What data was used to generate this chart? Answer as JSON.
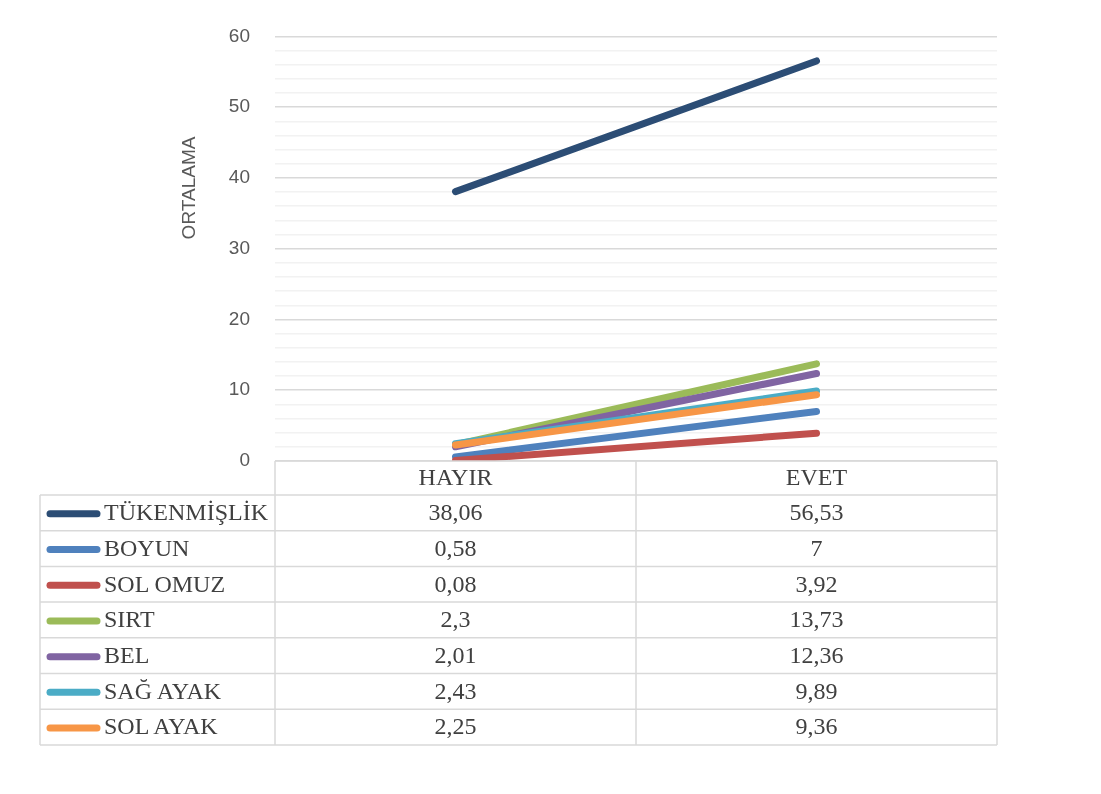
{
  "chart_data": {
    "type": "line",
    "ylabel": "ORTALAMA",
    "categories": [
      "HAYIR",
      "EVET"
    ],
    "series": [
      {
        "name": "TÜKENMİŞLİK",
        "color": "#2c4d75",
        "values": [
          38.06,
          56.53
        ],
        "value_labels": [
          "38,06",
          "56,53"
        ]
      },
      {
        "name": "BOYUN",
        "color": "#4f81bd",
        "values": [
          0.58,
          7
        ],
        "value_labels": [
          "0,58",
          "7"
        ]
      },
      {
        "name": "SOL OMUZ",
        "color": "#c0504d",
        "values": [
          0.08,
          3.92
        ],
        "value_labels": [
          "0,08",
          "3,92"
        ]
      },
      {
        "name": "SIRT",
        "color": "#9bbb59",
        "values": [
          2.3,
          13.73
        ],
        "value_labels": [
          "2,3",
          "13,73"
        ]
      },
      {
        "name": "BEL",
        "color": "#8064a2",
        "values": [
          2.01,
          12.36
        ],
        "value_labels": [
          "2,01",
          "12,36"
        ]
      },
      {
        "name": "SAĞ AYAK",
        "color": "#4bacc6",
        "values": [
          2.43,
          9.89
        ],
        "value_labels": [
          "2,43",
          "9,89"
        ]
      },
      {
        "name": "SOL AYAK",
        "color": "#f79646",
        "values": [
          2.25,
          9.36
        ],
        "value_labels": [
          "2,25",
          "9,36"
        ]
      }
    ],
    "ylim": [
      0,
      60
    ],
    "yticks": [
      0,
      {
        "value": 2,
        "label": null
      },
      {
        "value": 4,
        "label": null
      },
      {
        "value": 6,
        "label": null
      },
      {
        "value": 8,
        "label": null
      },
      10,
      {
        "value": 12,
        "label": null
      },
      {
        "value": 14,
        "label": null
      },
      {
        "value": 16,
        "label": null
      },
      {
        "value": 18,
        "label": null
      },
      20,
      {
        "value": 22,
        "label": null
      },
      {
        "value": 24,
        "label": null
      },
      {
        "value": 26,
        "label": null
      },
      {
        "value": 28,
        "label": null
      },
      30,
      {
        "value": 32,
        "label": null
      },
      {
        "value": 34,
        "label": null
      },
      {
        "value": 36,
        "label": null
      },
      {
        "value": 38,
        "label": null
      },
      40,
      {
        "value": 42,
        "label": null
      },
      {
        "value": 44,
        "label": null
      },
      {
        "value": 46,
        "label": null
      },
      {
        "value": 48,
        "label": null
      },
      50,
      {
        "value": 52,
        "label": null
      },
      {
        "value": 54,
        "label": null
      },
      {
        "value": 56,
        "label": null
      },
      {
        "value": 58,
        "label": null
      },
      60
    ],
    "grid": true,
    "legend": "bottom",
    "marker": "none",
    "line_style": "solid"
  }
}
